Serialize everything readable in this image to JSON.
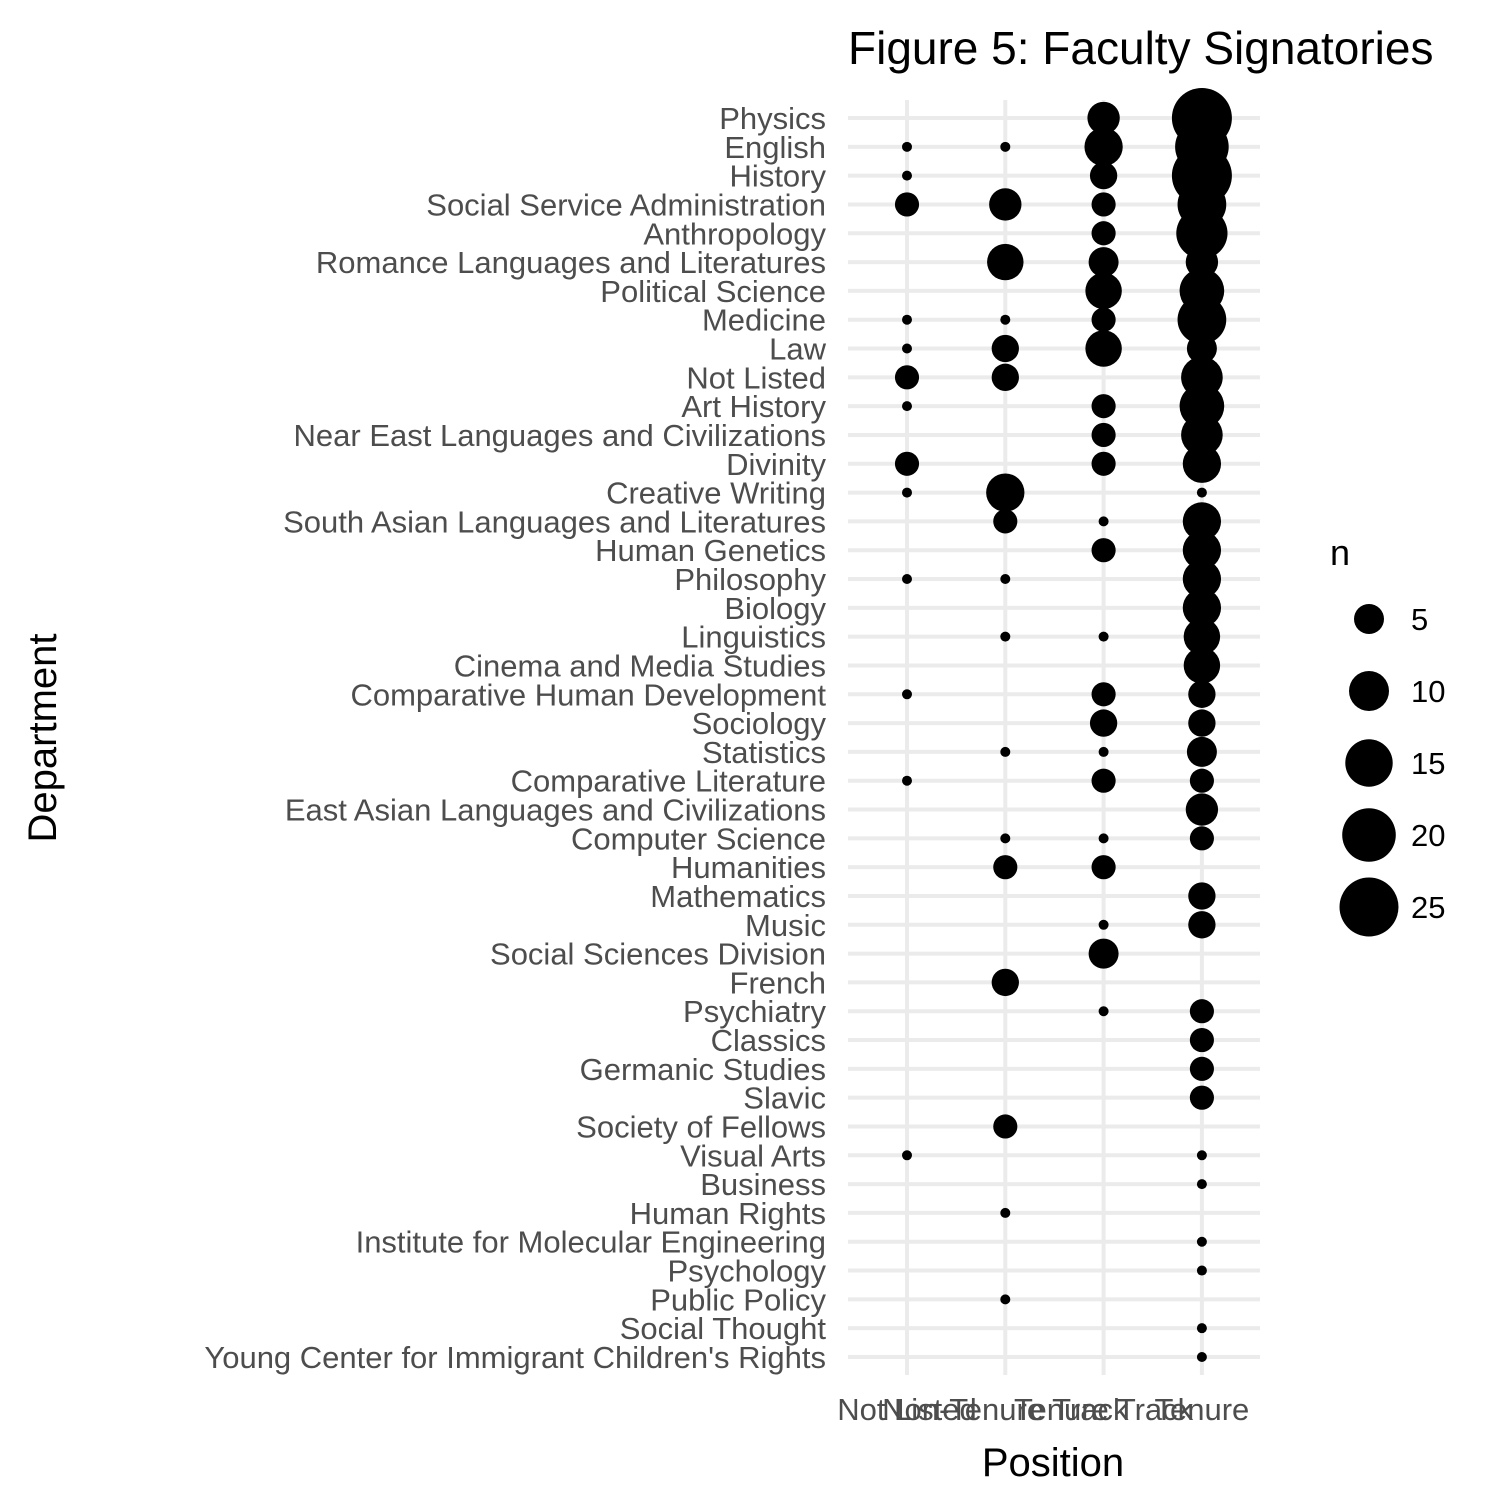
{
  "chart_data": {
    "type": "scatter",
    "title": "Figure 5: Faculty Signatories",
    "xlabel": "Position",
    "ylabel": "Department",
    "grid": true,
    "x_categories": [
      "Not Listed",
      "Non-Tenure Track",
      "Tenure Track",
      "Tenure"
    ],
    "y_categories": [
      "Physics",
      "English",
      "History",
      "Social Service Administration",
      "Anthropology",
      "Romance Languages and Literatures",
      "Political Science",
      "Medicine",
      "Law",
      "Not Listed",
      "Art History",
      "Near East Languages and Civilizations",
      "Divinity",
      "Creative Writing",
      "South Asian Languages and Literatures",
      "Human Genetics",
      "Philosophy",
      "Biology",
      "Linguistics",
      "Cinema and Media Studies",
      "Comparative Human Development",
      "Sociology",
      "Statistics",
      "Comparative Literature",
      "East Asian Languages and Civilizations",
      "Computer Science",
      "Humanities",
      "Mathematics",
      "Music",
      "Social Sciences Division",
      "French",
      "Psychiatry",
      "Classics",
      "Germanic Studies",
      "Slavic",
      "Society of Fellows",
      "Visual Arts",
      "Business",
      "Human Rights",
      "Institute for Molecular Engineering",
      "Psychology",
      "Public Policy",
      "Social Thought",
      "Young Center for Immigrant Children's Rights"
    ],
    "size_variable": "n",
    "legend": {
      "title": "n",
      "placement": "right",
      "values": [
        5,
        10,
        15,
        20,
        25
      ]
    },
    "points": [
      {
        "department": "Physics",
        "position": "Tenure Track",
        "n": 6
      },
      {
        "department": "Physics",
        "position": "Tenure",
        "n": 26
      },
      {
        "department": "English",
        "position": "Not Listed",
        "n": 1
      },
      {
        "department": "English",
        "position": "Non-Tenure Track",
        "n": 1
      },
      {
        "department": "English",
        "position": "Tenure Track",
        "n": 9
      },
      {
        "department": "English",
        "position": "Tenure",
        "n": 20
      },
      {
        "department": "History",
        "position": "Not Listed",
        "n": 1
      },
      {
        "department": "History",
        "position": "Tenure Track",
        "n": 4
      },
      {
        "department": "History",
        "position": "Tenure",
        "n": 26
      },
      {
        "department": "Social Service Administration",
        "position": "Not Listed",
        "n": 3
      },
      {
        "department": "Social Service Administration",
        "position": "Non-Tenure Track",
        "n": 6
      },
      {
        "department": "Social Service Administration",
        "position": "Tenure Track",
        "n": 3
      },
      {
        "department": "Social Service Administration",
        "position": "Tenure",
        "n": 16
      },
      {
        "department": "Anthropology",
        "position": "Tenure Track",
        "n": 3
      },
      {
        "department": "Anthropology",
        "position": "Tenure",
        "n": 18
      },
      {
        "department": "Romance Languages and Literatures",
        "position": "Non-Tenure Track",
        "n": 8
      },
      {
        "department": "Romance Languages and Literatures",
        "position": "Tenure Track",
        "n": 5
      },
      {
        "department": "Romance Languages and Literatures",
        "position": "Tenure",
        "n": 6
      },
      {
        "department": "Political Science",
        "position": "Tenure Track",
        "n": 8
      },
      {
        "department": "Political Science",
        "position": "Tenure",
        "n": 13
      },
      {
        "department": "Medicine",
        "position": "Not Listed",
        "n": 1
      },
      {
        "department": "Medicine",
        "position": "Non-Tenure Track",
        "n": 1
      },
      {
        "department": "Medicine",
        "position": "Tenure Track",
        "n": 3
      },
      {
        "department": "Medicine",
        "position": "Tenure",
        "n": 16
      },
      {
        "department": "Law",
        "position": "Not Listed",
        "n": 1
      },
      {
        "department": "Law",
        "position": "Non-Tenure Track",
        "n": 4
      },
      {
        "department": "Law",
        "position": "Tenure Track",
        "n": 8
      },
      {
        "department": "Law",
        "position": "Tenure",
        "n": 5
      },
      {
        "department": "Not Listed",
        "position": "Not Listed",
        "n": 3
      },
      {
        "department": "Not Listed",
        "position": "Non-Tenure Track",
        "n": 4
      },
      {
        "department": "Not Listed",
        "position": "Tenure",
        "n": 11
      },
      {
        "department": "Art History",
        "position": "Not Listed",
        "n": 1
      },
      {
        "department": "Art History",
        "position": "Tenure Track",
        "n": 3
      },
      {
        "department": "Art History",
        "position": "Tenure",
        "n": 13
      },
      {
        "department": "Near East Languages and Civilizations",
        "position": "Tenure Track",
        "n": 3
      },
      {
        "department": "Near East Languages and Civilizations",
        "position": "Tenure",
        "n": 11
      },
      {
        "department": "Divinity",
        "position": "Not Listed",
        "n": 3
      },
      {
        "department": "Divinity",
        "position": "Tenure Track",
        "n": 3
      },
      {
        "department": "Divinity",
        "position": "Tenure",
        "n": 9
      },
      {
        "department": "Creative Writing",
        "position": "Not Listed",
        "n": 1
      },
      {
        "department": "Creative Writing",
        "position": "Non-Tenure Track",
        "n": 9
      },
      {
        "department": "Creative Writing",
        "position": "Tenure",
        "n": 1
      },
      {
        "department": "South Asian Languages and Literatures",
        "position": "Non-Tenure Track",
        "n": 3
      },
      {
        "department": "South Asian Languages and Literatures",
        "position": "Tenure Track",
        "n": 1
      },
      {
        "department": "South Asian Languages and Literatures",
        "position": "Tenure",
        "n": 9
      },
      {
        "department": "Human Genetics",
        "position": "Tenure Track",
        "n": 3
      },
      {
        "department": "Human Genetics",
        "position": "Tenure",
        "n": 9
      },
      {
        "department": "Philosophy",
        "position": "Not Listed",
        "n": 1
      },
      {
        "department": "Philosophy",
        "position": "Non-Tenure Track",
        "n": 1
      },
      {
        "department": "Philosophy",
        "position": "Tenure",
        "n": 9
      },
      {
        "department": "Biology",
        "position": "Tenure",
        "n": 9
      },
      {
        "department": "Linguistics",
        "position": "Non-Tenure Track",
        "n": 1
      },
      {
        "department": "Linguistics",
        "position": "Tenure Track",
        "n": 1
      },
      {
        "department": "Linguistics",
        "position": "Tenure",
        "n": 8
      },
      {
        "department": "Cinema and Media Studies",
        "position": "Tenure",
        "n": 8
      },
      {
        "department": "Comparative Human Development",
        "position": "Not Listed",
        "n": 1
      },
      {
        "department": "Comparative Human Development",
        "position": "Tenure Track",
        "n": 3
      },
      {
        "department": "Comparative Human Development",
        "position": "Tenure",
        "n": 4
      },
      {
        "department": "Sociology",
        "position": "Tenure Track",
        "n": 4
      },
      {
        "department": "Sociology",
        "position": "Tenure",
        "n": 4
      },
      {
        "department": "Statistics",
        "position": "Non-Tenure Track",
        "n": 1
      },
      {
        "department": "Statistics",
        "position": "Tenure Track",
        "n": 1
      },
      {
        "department": "Statistics",
        "position": "Tenure",
        "n": 5
      },
      {
        "department": "Comparative Literature",
        "position": "Not Listed",
        "n": 1
      },
      {
        "department": "Comparative Literature",
        "position": "Tenure Track",
        "n": 3
      },
      {
        "department": "Comparative Literature",
        "position": "Tenure",
        "n": 3
      },
      {
        "department": "East Asian Languages and Civilizations",
        "position": "Tenure",
        "n": 6
      },
      {
        "department": "Computer Science",
        "position": "Non-Tenure Track",
        "n": 1
      },
      {
        "department": "Computer Science",
        "position": "Tenure Track",
        "n": 1
      },
      {
        "department": "Computer Science",
        "position": "Tenure",
        "n": 3
      },
      {
        "department": "Humanities",
        "position": "Non-Tenure Track",
        "n": 3
      },
      {
        "department": "Humanities",
        "position": "Tenure Track",
        "n": 3
      },
      {
        "department": "Mathematics",
        "position": "Tenure",
        "n": 4
      },
      {
        "department": "Music",
        "position": "Tenure Track",
        "n": 1
      },
      {
        "department": "Music",
        "position": "Tenure",
        "n": 4
      },
      {
        "department": "Social Sciences Division",
        "position": "Tenure Track",
        "n": 5
      },
      {
        "department": "French",
        "position": "Non-Tenure Track",
        "n": 4
      },
      {
        "department": "Psychiatry",
        "position": "Tenure Track",
        "n": 1
      },
      {
        "department": "Psychiatry",
        "position": "Tenure",
        "n": 3
      },
      {
        "department": "Classics",
        "position": "Tenure",
        "n": 3
      },
      {
        "department": "Germanic Studies",
        "position": "Tenure",
        "n": 3
      },
      {
        "department": "Slavic",
        "position": "Tenure",
        "n": 3
      },
      {
        "department": "Society of Fellows",
        "position": "Non-Tenure Track",
        "n": 3
      },
      {
        "department": "Visual Arts",
        "position": "Not Listed",
        "n": 1
      },
      {
        "department": "Visual Arts",
        "position": "Tenure",
        "n": 1
      },
      {
        "department": "Business",
        "position": "Tenure",
        "n": 1
      },
      {
        "department": "Human Rights",
        "position": "Non-Tenure Track",
        "n": 1
      },
      {
        "department": "Institute for Molecular Engineering",
        "position": "Tenure",
        "n": 1
      },
      {
        "department": "Psychology",
        "position": "Tenure",
        "n": 1
      },
      {
        "department": "Public Policy",
        "position": "Non-Tenure Track",
        "n": 1
      },
      {
        "department": "Social Thought",
        "position": "Tenure",
        "n": 1
      },
      {
        "department": "Young Center for Immigrant Children's Rights",
        "position": "Tenure",
        "n": 1
      }
    ]
  }
}
